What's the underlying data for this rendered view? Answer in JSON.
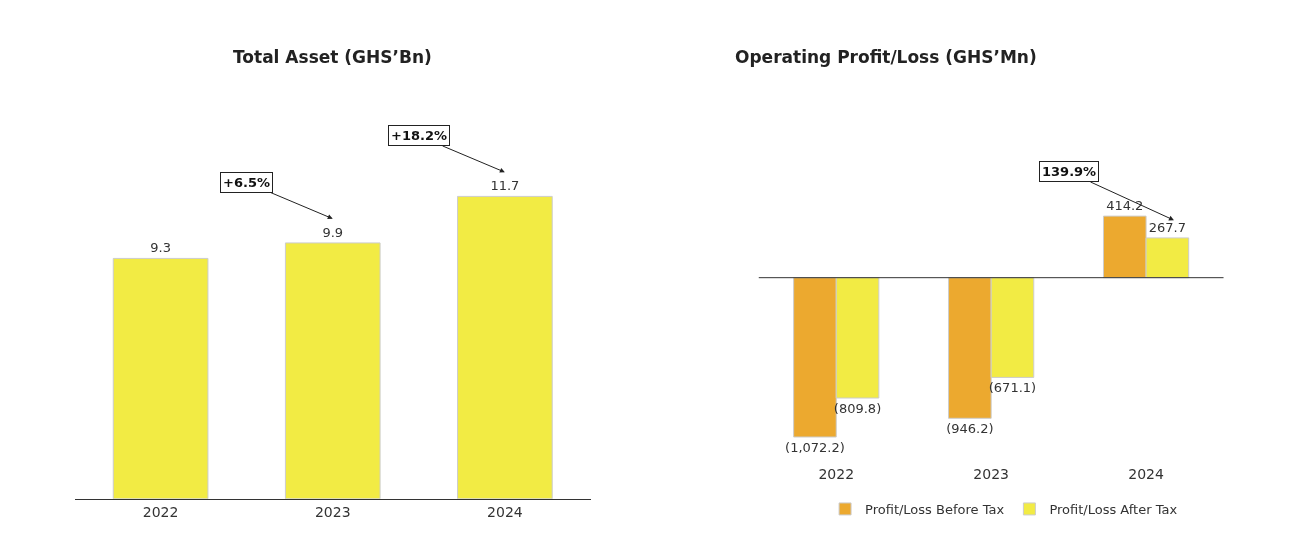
{
  "chart_data": [
    {
      "type": "bar",
      "title": "Total Asset (GHS’Bn)",
      "categories": [
        "2022",
        "2023",
        "2024"
      ],
      "values": [
        9.3,
        9.9,
        11.7
      ],
      "color": "#f2eb44",
      "data_labels": true,
      "annotations": [
        "+6.5%",
        "+18.2%"
      ],
      "legend": false
    },
    {
      "type": "bar",
      "title": "Operating Profit/Loss (GHS’Mn)",
      "categories": [
        "2022",
        "2023",
        "2024"
      ],
      "series": [
        {
          "name": "Profit/Loss Before Tax",
          "color": "#eca92f",
          "values": [
            -1072.2,
            -946.2,
            414.2
          ],
          "value_labels": [
            "(1,072.2)",
            "(946.2)",
            "414.2"
          ]
        },
        {
          "name": "Profit/Loss After Tax",
          "color": "#f2eb44",
          "values": [
            -809.8,
            -671.1,
            267.7
          ],
          "value_labels": [
            "(809.8)",
            "(671.1)",
            "267.7"
          ]
        }
      ],
      "annotations": [
        "139.9%"
      ],
      "legend": "bottom"
    }
  ]
}
